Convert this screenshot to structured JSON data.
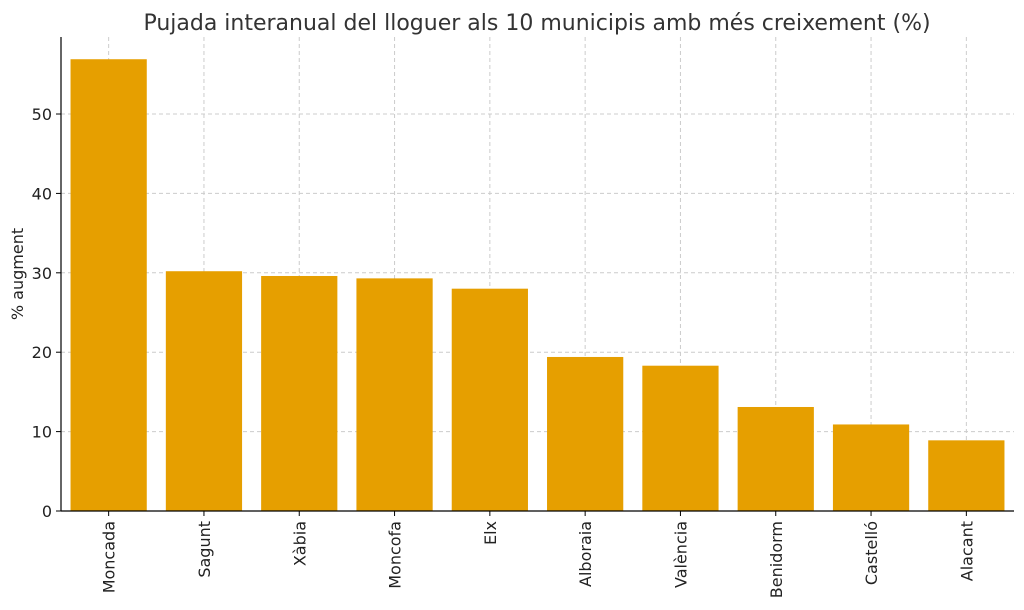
{
  "chart_data": {
    "type": "bar",
    "title": "Pujada interanual del lloguer als 10 municipis amb més creixement (%)",
    "xlabel": "",
    "ylabel": "% augment",
    "categories": [
      "Moncada",
      "Sagunt",
      "Xàbia",
      "Moncofa",
      "Elx",
      "Alboraia",
      "València",
      "Benidorm",
      "Castelló",
      "Alacant"
    ],
    "values": [
      56.9,
      30.2,
      29.6,
      29.3,
      28.0,
      19.4,
      18.3,
      13.1,
      10.9,
      8.9
    ],
    "ylim": [
      0,
      59.7
    ],
    "yticks": [
      0,
      10,
      20,
      30,
      40,
      50
    ],
    "grid": true,
    "bar_color": "#E69F00"
  }
}
